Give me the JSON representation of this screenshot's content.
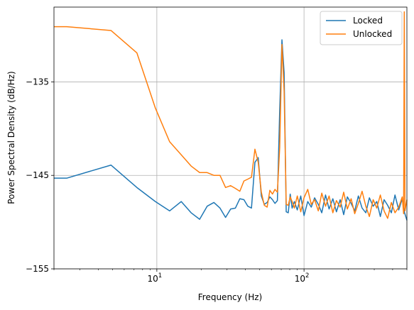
{
  "chart_data": {
    "type": "line",
    "title": "",
    "xlabel": "Frequency (Hz)",
    "ylabel": "Power Spectral Density (dB/Hz)",
    "xscale": "log",
    "xlim": [
      2,
      500
    ],
    "ylim": [
      -155,
      -127
    ],
    "grid": true,
    "legend_position": "top-right",
    "x_ticks": [
      {
        "value": 10,
        "base": "10",
        "exp": "1"
      },
      {
        "value": 100,
        "base": "10",
        "exp": "2"
      }
    ],
    "y_ticks": [
      {
        "value": -135,
        "label": "−135"
      },
      {
        "value": -145,
        "label": "−145"
      },
      {
        "value": -155,
        "label": "−155"
      }
    ],
    "series": [
      {
        "name": "Locked",
        "color": "#1f77b4",
        "x": [
          2.0,
          2.44,
          4.88,
          7.32,
          9.77,
          12.21,
          14.65,
          17.09,
          19.53,
          21.97,
          24.41,
          26.86,
          29.3,
          31.74,
          34.18,
          36.62,
          39.06,
          41.5,
          43.95,
          46.39,
          48.83,
          51.27,
          53.71,
          56.15,
          58.59,
          61.04,
          63.48,
          65.92,
          68.36,
          70.8,
          73.24,
          75.68,
          78.13,
          80.57,
          83.0,
          86.0,
          90.0,
          95.0,
          100.0,
          106.0,
          112.0,
          118.0,
          125.0,
          132.0,
          140.0,
          148.0,
          157.0,
          166.0,
          176.0,
          186.0,
          197.0,
          209.0,
          221.0,
          234.0,
          248.0,
          263.0,
          278.0,
          295.0,
          312.0,
          330.0,
          350.0,
          370.0,
          392.0,
          415.0,
          440.0,
          465.0,
          480.0,
          500.0
        ],
        "values": [
          -145.3,
          -145.3,
          -143.9,
          -146.3,
          -147.8,
          -148.8,
          -147.8,
          -149.0,
          -149.7,
          -148.3,
          -147.9,
          -148.5,
          -149.5,
          -148.6,
          -148.5,
          -147.5,
          -147.6,
          -148.3,
          -148.5,
          -143.6,
          -143.1,
          -147.2,
          -148.1,
          -147.9,
          -147.3,
          -147.6,
          -148.0,
          -147.7,
          -138.0,
          -130.5,
          -134.0,
          -148.9,
          -149.0,
          -147.0,
          -148.5,
          -147.8,
          -148.7,
          -147.2,
          -149.3,
          -147.8,
          -148.4,
          -147.4,
          -148.1,
          -149.0,
          -147.1,
          -148.6,
          -147.5,
          -148.9,
          -147.6,
          -149.2,
          -147.3,
          -148.0,
          -148.8,
          -147.2,
          -148.5,
          -149.0,
          -147.4,
          -148.3,
          -147.8,
          -149.4,
          -147.6,
          -148.2,
          -149.0,
          -147.1,
          -148.7,
          -147.5,
          -148.9,
          -149.8
        ]
      },
      {
        "name": "Unlocked",
        "color": "#ff7f0e",
        "x": [
          2.0,
          2.44,
          4.88,
          7.32,
          9.77,
          12.21,
          14.65,
          17.09,
          19.53,
          21.97,
          24.41,
          26.86,
          29.3,
          31.74,
          34.18,
          36.62,
          39.06,
          41.5,
          43.95,
          46.39,
          48.83,
          51.27,
          53.71,
          56.15,
          58.59,
          61.04,
          63.48,
          65.92,
          68.36,
          70.8,
          73.24,
          75.68,
          78.13,
          80.57,
          83.0,
          86.0,
          90.0,
          95.0,
          100.0,
          106.0,
          112.0,
          118.0,
          125.0,
          132.0,
          140.0,
          148.0,
          157.0,
          166.0,
          176.0,
          186.0,
          197.0,
          209.0,
          221.0,
          234.0,
          248.0,
          263.0,
          278.0,
          295.0,
          312.0,
          330.0,
          350.0,
          370.0,
          392.0,
          415.0,
          440.0,
          465.0,
          475.0,
          480.0,
          485.0,
          500.0
        ],
        "values": [
          -129.1,
          -129.1,
          -129.5,
          -131.9,
          -137.8,
          -141.4,
          -142.8,
          -144.0,
          -144.7,
          -144.7,
          -145.0,
          -145.0,
          -146.3,
          -146.1,
          -146.4,
          -146.7,
          -145.6,
          -145.4,
          -145.2,
          -142.2,
          -143.6,
          -146.8,
          -148.2,
          -148.4,
          -146.6,
          -147.0,
          -146.5,
          -146.8,
          -142.0,
          -131.0,
          -136.0,
          -148.1,
          -148.2,
          -147.3,
          -147.8,
          -148.5,
          -147.2,
          -148.9,
          -147.4,
          -146.5,
          -148.1,
          -147.6,
          -148.8,
          -146.9,
          -148.3,
          -147.2,
          -149.0,
          -147.7,
          -148.4,
          -146.8,
          -148.6,
          -147.5,
          -149.1,
          -148.0,
          -146.7,
          -148.3,
          -149.4,
          -147.6,
          -148.5,
          -147.1,
          -148.8,
          -149.6,
          -147.9,
          -149.0,
          -148.4,
          -147.3,
          -149.1,
          -127.5,
          -148.8,
          -147.6
        ]
      }
    ]
  }
}
